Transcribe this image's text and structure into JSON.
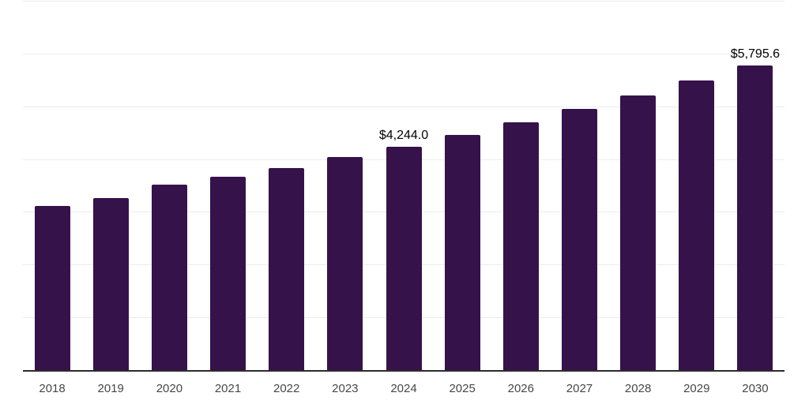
{
  "chart_data": {
    "type": "bar",
    "title": "",
    "xlabel": "",
    "ylabel": "",
    "categories": [
      "2018",
      "2019",
      "2020",
      "2021",
      "2022",
      "2023",
      "2024",
      "2025",
      "2026",
      "2027",
      "2028",
      "2029",
      "2030"
    ],
    "values": [
      3120,
      3270,
      3530,
      3680,
      3850,
      4060,
      4244.0,
      4470,
      4710,
      4970,
      5220,
      5500,
      5795.6
    ],
    "data_labels": [
      "",
      "",
      "",
      "",
      "",
      "",
      "$4,244.0",
      "",
      "",
      "",
      "",
      "",
      "$5,795.6"
    ],
    "ylim": [
      0,
      7000
    ],
    "grid": {
      "visible": true,
      "step": 1000,
      "orientation": "horizontal"
    },
    "legend_position": "none",
    "colors": {
      "bar": "#36124b",
      "gridline": "#ececec",
      "axis_line": "#2b2b2b",
      "tick_label": "#474747",
      "value_label": "#000000",
      "background": "#ffffff"
    }
  }
}
